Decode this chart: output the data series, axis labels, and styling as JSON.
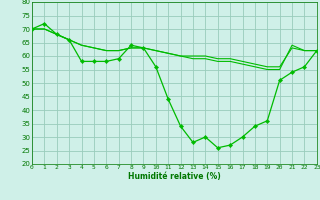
{
  "xlabel": "Humidité relative (%)",
  "background_color": "#cff0e8",
  "grid_color": "#99ccbb",
  "line_color": "#00bb00",
  "ylim": [
    20,
    80
  ],
  "xlim": [
    0,
    23
  ],
  "yticks": [
    20,
    25,
    30,
    35,
    40,
    45,
    50,
    55,
    60,
    65,
    70,
    75,
    80
  ],
  "xticks": [
    0,
    1,
    2,
    3,
    4,
    5,
    6,
    7,
    8,
    9,
    10,
    11,
    12,
    13,
    14,
    15,
    16,
    17,
    18,
    19,
    20,
    21,
    22,
    23
  ],
  "series_main": {
    "x": [
      0,
      1,
      2,
      3,
      4,
      5,
      6,
      7,
      8,
      9,
      10,
      11,
      12,
      13,
      14,
      15,
      16,
      17,
      18,
      19,
      20,
      21,
      22,
      23
    ],
    "y": [
      70,
      72,
      68,
      66,
      58,
      58,
      58,
      59,
      64,
      63,
      56,
      44,
      34,
      28,
      30,
      26,
      27,
      30,
      34,
      36,
      51,
      54,
      56,
      62
    ]
  },
  "series_upper": {
    "x": [
      0,
      1,
      2,
      3,
      4,
      5,
      6,
      7,
      8,
      9,
      10,
      11,
      12,
      13,
      14,
      15,
      16,
      17,
      18,
      19,
      20,
      21,
      22,
      23
    ],
    "y": [
      70,
      70,
      68,
      66,
      64,
      63,
      62,
      62,
      63,
      63,
      62,
      61,
      60,
      60,
      60,
      59,
      59,
      58,
      57,
      56,
      56,
      63,
      62,
      62
    ]
  },
  "series_lower": {
    "x": [
      0,
      1,
      2,
      3,
      4,
      5,
      6,
      7,
      8,
      9,
      10,
      11,
      12,
      13,
      14,
      15,
      16,
      17,
      18,
      19,
      20,
      21,
      22,
      23
    ],
    "y": [
      70,
      70,
      68,
      66,
      64,
      63,
      62,
      62,
      63,
      63,
      62,
      61,
      60,
      59,
      59,
      58,
      58,
      57,
      56,
      55,
      55,
      64,
      62,
      62
    ]
  }
}
